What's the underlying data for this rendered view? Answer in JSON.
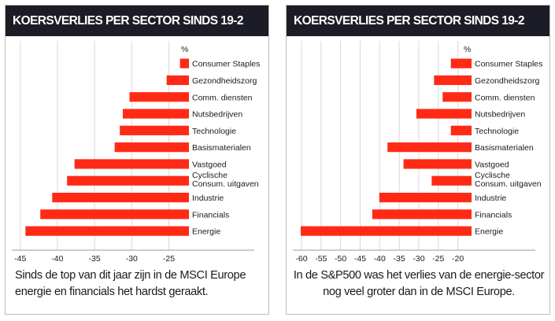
{
  "colors": {
    "bar": "#ff2a16",
    "grid": "#d9d9d9",
    "text": "#1a1a1a",
    "header_bg": "#1c1c26",
    "header_text": "#ffffff"
  },
  "panels": [
    {
      "title": "KOERSVERLIES PER SECTOR SINDS 19-2",
      "caption": "Sinds de top van dit jaar zijn in de MSCI Europe energie en financials het hardst geraakt.",
      "chart_data": {
        "type": "bar",
        "orientation": "horizontal",
        "unit_label": "%",
        "categories": [
          "Consumer Staples",
          "Gezondheidszorg",
          "Comm. diensten",
          "Nutsbedrijven",
          "Technologie",
          "Basismaterialen",
          "Vastgoed",
          "Cyclische Consum. uitgaven",
          "Industrie",
          "Financials",
          "Energie"
        ],
        "category_lines": [
          [
            "Consumer Staples"
          ],
          [
            "Gezondheidszorg"
          ],
          [
            "Comm. diensten"
          ],
          [
            "Nutsbedrijven"
          ],
          [
            "Technologie"
          ],
          [
            "Basismaterialen"
          ],
          [
            "Vastgoed"
          ],
          [
            "Cyclische",
            "Consum. uitgaven"
          ],
          [
            "Industrie"
          ],
          [
            "Financials"
          ],
          [
            "Energie"
          ]
        ],
        "values": [
          -23.5,
          -25.3,
          -30.3,
          -31.2,
          -31.6,
          -32.3,
          -37.7,
          -38.7,
          -40.7,
          -42.3,
          -44.3
        ],
        "xlim": [
          -45.5,
          -22.3
        ],
        "xticks": [
          -45,
          -40,
          -35,
          -30,
          -25
        ],
        "xtick_labels": [
          "-45",
          "-40",
          "-35",
          "-30",
          "-25"
        ],
        "grid": true
      }
    },
    {
      "title": "KOERSVERLIES PER SECTOR SINDS 19-2",
      "caption": "In de S&P500 was het verlies van de energie-sector nog veel groter dan in de MSCI Europe.",
      "chart_data": {
        "type": "bar",
        "orientation": "horizontal",
        "unit_label": "%",
        "categories": [
          "Consumer Staples",
          "Gezondheidszorg",
          "Comm. diensten",
          "Nutsbedrijven",
          "Technologie",
          "Basismaterialen",
          "Vastgoed",
          "Cyclische Consum. uitgaven",
          "Industrie",
          "Financials",
          "Energie"
        ],
        "category_lines": [
          [
            "Consumer Staples"
          ],
          [
            "Gezondheidszorg"
          ],
          [
            "Comm. diensten"
          ],
          [
            "Nutsbedrijven"
          ],
          [
            "Technologie"
          ],
          [
            "Basismaterialen"
          ],
          [
            "Vastgoed"
          ],
          [
            "Cyclische",
            "Consum. uitgaven"
          ],
          [
            "Industrie"
          ],
          [
            "Financials"
          ],
          [
            "Energie"
          ]
        ],
        "values": [
          -21.8,
          -26.1,
          -23.9,
          -30.6,
          -21.8,
          -38.0,
          -33.9,
          -26.7,
          -40.1,
          -41.9,
          -60.2
        ],
        "xlim": [
          -61.0,
          -16.5
        ],
        "xticks": [
          -60,
          -55,
          -50,
          -45,
          -40,
          -35,
          -30,
          -25,
          -20
        ],
        "xtick_labels": [
          "-60",
          "-55",
          "-50",
          "-45",
          "-40",
          "-35",
          "-30",
          "-25",
          "-20"
        ],
        "grid": true
      }
    }
  ]
}
